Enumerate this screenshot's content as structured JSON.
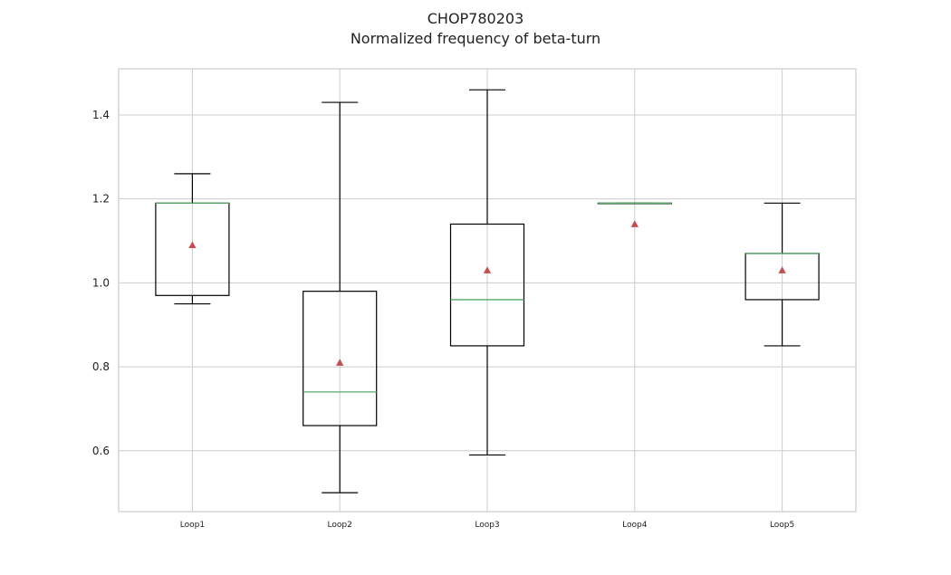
{
  "chart_data": {
    "type": "box",
    "title": "CHOP780203",
    "subtitle": "Normalized frequency of beta-turn",
    "xlabel": "",
    "ylabel": "",
    "categories": [
      "Loop1",
      "Loop2",
      "Loop3",
      "Loop4",
      "Loop5"
    ],
    "boxes": [
      {
        "name": "Loop1",
        "whisker_low": 0.95,
        "q1": 0.97,
        "median": 1.19,
        "q3": 1.19,
        "whisker_high": 1.26,
        "mean": 1.09
      },
      {
        "name": "Loop2",
        "whisker_low": 0.5,
        "q1": 0.66,
        "median": 0.74,
        "q3": 0.98,
        "whisker_high": 1.43,
        "mean": 0.81
      },
      {
        "name": "Loop3",
        "whisker_low": 0.59,
        "q1": 0.85,
        "median": 0.96,
        "q3": 1.14,
        "whisker_high": 1.46,
        "mean": 1.03
      },
      {
        "name": "Loop4",
        "whisker_low": 1.19,
        "q1": 1.19,
        "median": 1.19,
        "q3": 1.19,
        "whisker_high": 1.19,
        "mean": 1.14
      },
      {
        "name": "Loop5",
        "whisker_low": 0.85,
        "q1": 0.96,
        "median": 1.07,
        "q3": 1.07,
        "whisker_high": 1.19,
        "mean": 1.03
      }
    ],
    "y_ticks": [
      0.6,
      0.8,
      1.0,
      1.2,
      1.4
    ],
    "y_tick_labels": [
      "0.6",
      "0.8",
      "1.0",
      "1.2",
      "1.4"
    ],
    "ylim": [
      0.455,
      1.51
    ],
    "grid": true,
    "legend": "none",
    "colors": {
      "box": "#000000",
      "median": "#55a868",
      "mean_marker": "#c44e52",
      "grid": "#cccccc",
      "frame": "#cccccc"
    }
  }
}
